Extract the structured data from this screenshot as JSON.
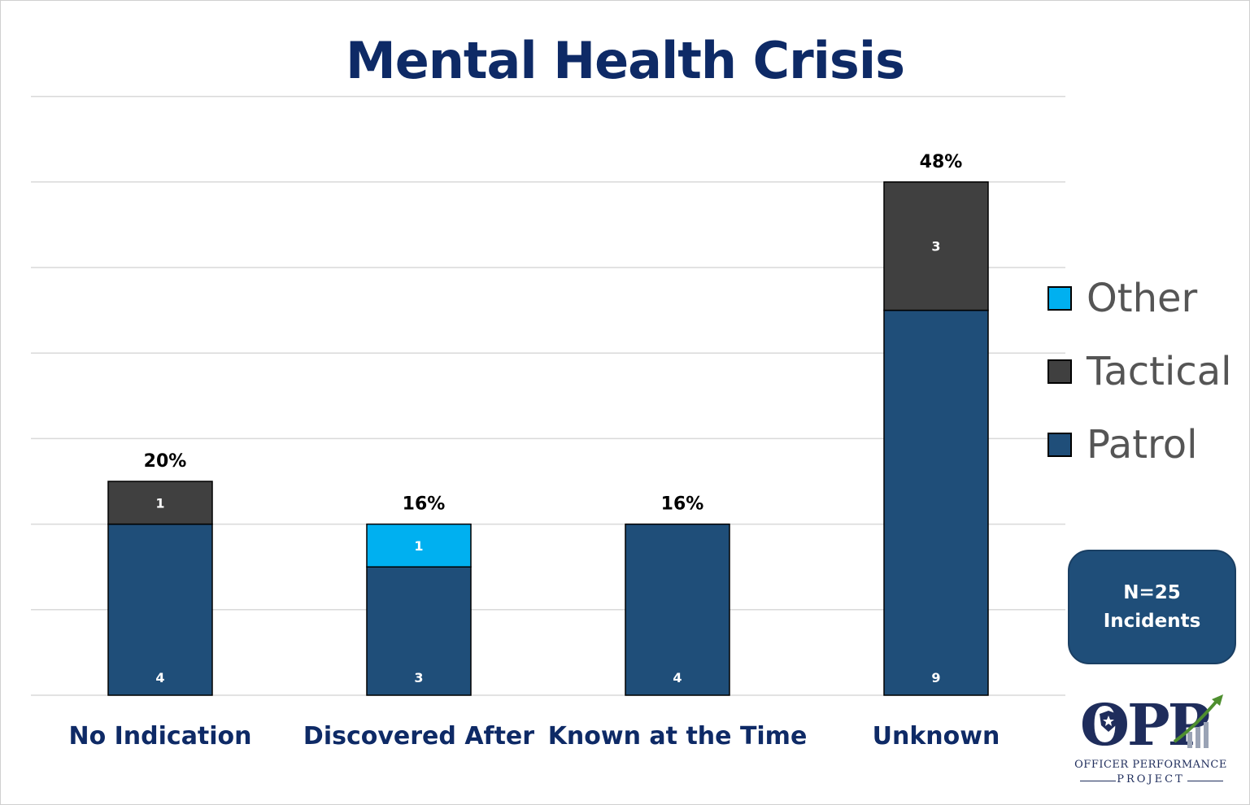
{
  "chart_data": {
    "type": "bar",
    "stacked": true,
    "title": "Mental Health Crisis",
    "categories": [
      "No Indication",
      "Discovered After",
      "Known at the Time",
      "Unknown"
    ],
    "series": [
      {
        "name": "Patrol",
        "values": [
          4,
          3,
          4,
          9
        ],
        "color": "#1f4e79"
      },
      {
        "name": "Tactical",
        "values": [
          1,
          0,
          0,
          3
        ],
        "color": "#404040"
      },
      {
        "name": "Other",
        "values": [
          0,
          1,
          0,
          0
        ],
        "color": "#00b0f0"
      }
    ],
    "percent_labels": [
      "20%",
      "16%",
      "16%",
      "48%"
    ],
    "ylim": [
      0,
      14
    ],
    "grid": true,
    "legend_position": "right",
    "legend_order": [
      "Other",
      "Tactical",
      "Patrol"
    ]
  },
  "note_box": {
    "line1": "N=25",
    "line2": "Incidents"
  },
  "logo": {
    "letters": "OPP",
    "line1": "OFFICER PERFORMANCE",
    "line2": "PROJECT"
  }
}
